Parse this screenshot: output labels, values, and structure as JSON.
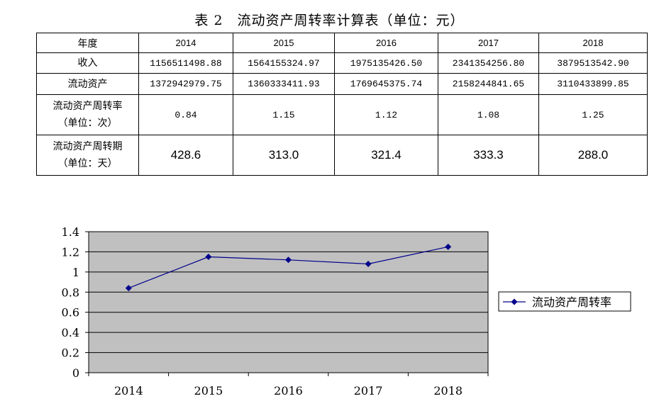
{
  "page": {
    "title": "表 2　流动资产周转率计算表（单位：元）"
  },
  "table": {
    "header": [
      "年度",
      "2014",
      "2015",
      "2016",
      "2017",
      "2018"
    ],
    "rows": [
      {
        "label_line1": "收入",
        "label_line2": "",
        "values": [
          "1156511498.88",
          "1564155324.97",
          "1975135426.50",
          "2341354256.80",
          "3879513542.90"
        ]
      },
      {
        "label_line1": "流动资产",
        "label_line2": "",
        "values": [
          "1372942979.75",
          "1360333411.93",
          "1769645375.74",
          "2158244841.65",
          "3110433899.85"
        ]
      },
      {
        "label_line1": "流动资产周转率",
        "label_line2": "（单位：次）",
        "values": [
          "0.84",
          "1.15",
          "1.12",
          "1.08",
          "1.25"
        ]
      },
      {
        "label_line1": "流动资产周转期",
        "label_line2": "（单位：天）",
        "values": [
          "428.6",
          "313.0",
          "321.4",
          "333.3",
          "288.0"
        ]
      }
    ]
  },
  "chart_data": {
    "type": "line",
    "categories": [
      "2014",
      "2015",
      "2016",
      "2017",
      "2018"
    ],
    "series": [
      {
        "name": "流动资产周转率",
        "values": [
          0.84,
          1.15,
          1.12,
          1.08,
          1.25
        ],
        "color": "#00008B",
        "marker": "diamond"
      }
    ],
    "y_ticks": [
      "1.4",
      "1.2",
      "1",
      "0.8",
      "0.6",
      "0.4",
      "0.2",
      "0"
    ],
    "ylim": [
      0,
      1.4
    ],
    "grid": true,
    "plot_background": "#C0C0C0",
    "legend": "right",
    "title": "",
    "xlabel": "",
    "ylabel": ""
  }
}
